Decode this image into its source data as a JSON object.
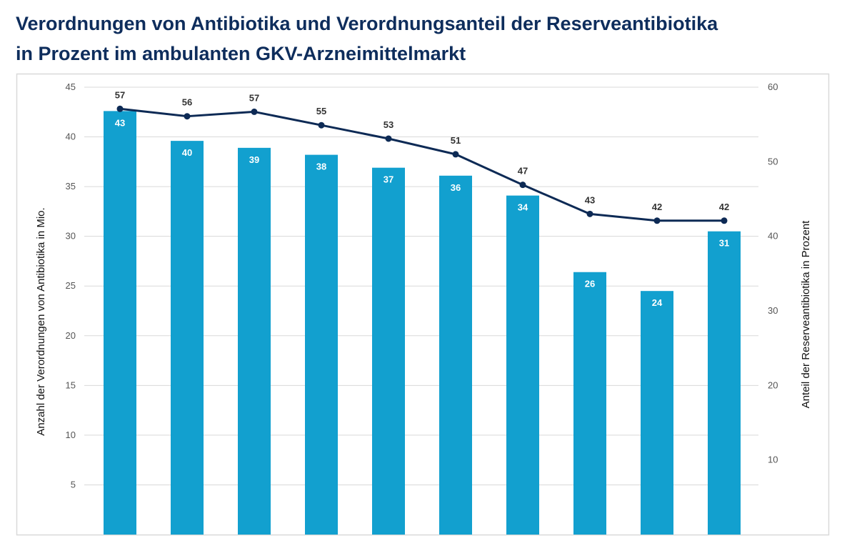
{
  "chart_data": {
    "type": "bar+line",
    "title": "Verordnungen von Antibiotika und Verordnungsanteil der Reserveantibiotika in Prozent im ambulanten GKV-Arzneimittelmarkt",
    "title_lines": [
      "Verordnungen von Antibiotika und Verordnungsanteil der Reserveantibiotika",
      "in Prozent im ambulanten GKV-Arzneimittelmarkt"
    ],
    "ylabel_left": "Anzahl der Verordnungen von Antibiotika in Mio.",
    "ylabel_right": "Anteil der Reserveantibiotika in Prozent",
    "ylim_left": [
      0,
      45
    ],
    "yticks_left": [
      5,
      10,
      15,
      20,
      25,
      30,
      35,
      40,
      45
    ],
    "ylim_right": [
      0,
      60
    ],
    "yticks_right": [
      10,
      20,
      30,
      40,
      50,
      60
    ],
    "grid": true,
    "bars": {
      "color": "#12a0cf",
      "values": [
        42.6,
        39.6,
        38.9,
        38.2,
        36.9,
        36.1,
        34.1,
        26.4,
        24.5,
        30.5
      ],
      "labels": [
        "43",
        "40",
        "39",
        "38",
        "37",
        "36",
        "34",
        "26",
        "24",
        "31"
      ]
    },
    "line": {
      "color": "#0d2a55",
      "values": [
        57.1,
        56.1,
        56.7,
        54.9,
        53.1,
        51.0,
        46.9,
        43.0,
        42.1,
        42.1
      ],
      "labels": [
        "57",
        "56",
        "57",
        "55",
        "53",
        "51",
        "47",
        "43",
        "42",
        "42"
      ]
    }
  }
}
